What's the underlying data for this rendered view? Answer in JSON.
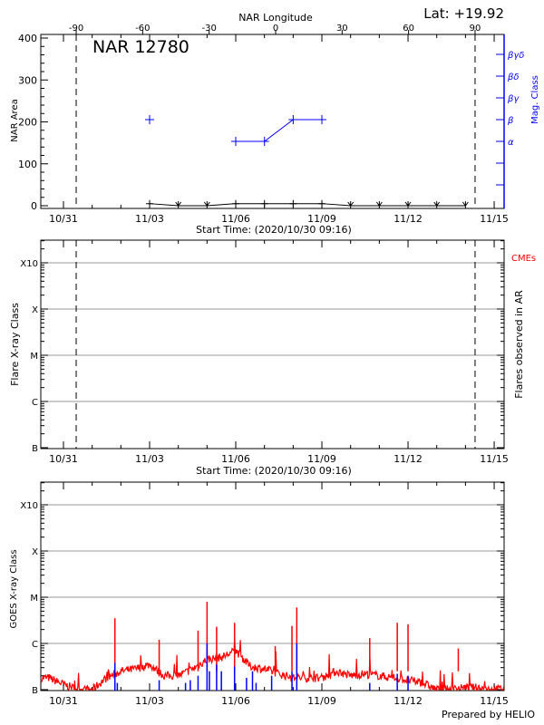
{
  "chart_data": [
    {
      "type": "line",
      "panel": "nar",
      "title": "NAR 12780",
      "latitude_label": "Lat: +19.92",
      "top_axis_label": "NAR Longitude",
      "top_ticks": [
        -90,
        -60,
        -30,
        0,
        30,
        60,
        90
      ],
      "xlabel": "Start Time: (2020/10/30 09:16)",
      "x_tick_labels": [
        "10/31",
        "11/03",
        "11/06",
        "11/09",
        "11/12",
        "11/15"
      ],
      "ylabel": "NAR Area",
      "ylim": [
        0,
        400
      ],
      "y_ticks": [
        0,
        100,
        200,
        300,
        400
      ],
      "y2label": "Mag. Class",
      "y2_ticks": [
        "α",
        "β",
        "βγ",
        "βδ",
        "βγδ"
      ],
      "limb_longitudes": [
        -90,
        90
      ],
      "series": [
        {
          "name": "NAR Area",
          "color": "#000000",
          "x": [
            "11/03",
            "11/04",
            "11/05",
            "11/06",
            "11/07",
            "11/08",
            "11/09",
            "11/10",
            "11/11",
            "11/12",
            "11/13",
            "11/14"
          ],
          "values": [
            5,
            0,
            0,
            5,
            5,
            5,
            5,
            0,
            0,
            0,
            0,
            0
          ]
        },
        {
          "name": "Mag. Class",
          "color": "#0000ff",
          "x": [
            "11/03",
            "11/06",
            "11/07",
            "11/08",
            "11/09"
          ],
          "values": [
            "β",
            "α",
            "α",
            "β",
            "β"
          ]
        }
      ]
    },
    {
      "type": "bar",
      "panel": "flares",
      "xlabel": "Start Time: (2020/10/30 09:16)",
      "x_tick_labels": [
        "10/31",
        "11/03",
        "11/06",
        "11/09",
        "11/12",
        "11/15"
      ],
      "ylabel": "Flare X-ray Class",
      "y_ticks": [
        "B",
        "C",
        "M",
        "X",
        "X10"
      ],
      "y2label": "Flares observed in AR",
      "legend": "CMEs",
      "cme_color": "#ff0000",
      "grid": true,
      "flares": []
    },
    {
      "type": "line",
      "panel": "goes",
      "ylabel": "GOES X-ray Class",
      "y_ticks": [
        "B",
        "C",
        "M",
        "X",
        "X10"
      ],
      "y_scale": "log",
      "x_tick_labels": [
        "10/31",
        "11/03",
        "11/06",
        "11/09",
        "11/12",
        "11/15"
      ],
      "grid": true,
      "curve_color": "#ff0000",
      "ar_flare_color": "#0000ff",
      "background_flux": {
        "time": [
          "10/30 12:00",
          "10/31 00:00",
          "10/31 12:00",
          "11/01 00:00",
          "11/01 12:00",
          "11/02 00:00",
          "11/02 12:00",
          "11/03 00:00",
          "11/03 12:00",
          "11/04 00:00",
          "11/04 12:00",
          "11/05 00:00",
          "11/05 12:00",
          "11/06 00:00",
          "11/06 12:00",
          "11/07 00:00",
          "11/07 12:00",
          "11/08 00:00",
          "11/08 12:00",
          "11/09 00:00",
          "11/09 12:00",
          "11/10 00:00",
          "11/10 12:00",
          "11/11 00:00",
          "11/11 12:00",
          "11/12 00:00",
          "11/12 12:00",
          "11/13 00:00",
          "11/13 12:00",
          "11/14 00:00",
          "11/14 12:00",
          "11/15 00:00",
          "11/15 12:00"
        ],
        "flux": [
          1.8e-07,
          1.3e-07,
          1e-07,
          1e-07,
          1.8e-07,
          2.5e-07,
          2.8e-07,
          3.5e-07,
          2e-07,
          2e-07,
          2.8e-07,
          4.5e-07,
          5e-07,
          7e-07,
          3.2e-07,
          2.8e-07,
          2.2e-07,
          1.8e-07,
          1.8e-07,
          1.8e-07,
          2.5e-07,
          2e-07,
          2.2e-07,
          2e-07,
          1.8e-07,
          1.6e-07,
          1.4e-07,
          1e-07,
          1e-07,
          1.1e-07,
          1.1e-07,
          1e-07,
          1.1e-07
        ]
      },
      "peaks": {
        "time": [
          "11/01 19:00",
          "11/03 08:00",
          "11/04 16:30",
          "11/05 00:00",
          "11/05 08:00",
          "11/05 23:00",
          "11/07 09:00",
          "11/07 23:00",
          "11/08 03:00",
          "11/10 16:00",
          "11/11 15:00",
          "11/12 00:00",
          "11/13 18:00"
        ],
        "flux": [
          3.5e-06,
          1.2e-06,
          1.9e-06,
          8e-06,
          2.3e-06,
          2.8e-06,
          8.7e-07,
          2.4e-06,
          6e-06,
          1.3e-06,
          2.8e-06,
          2.6e-06,
          7.8e-07
        ]
      },
      "ar_flares": {
        "time": [
          "11/01 19:00",
          "11/01 21:00",
          "11/03 08:00",
          "11/04 06:00",
          "11/04 10:00",
          "11/04 16:30",
          "11/05 00:00",
          "11/05 02:00",
          "11/05 08:00",
          "11/05 12:00",
          "11/05 23:00",
          "11/06 09:00",
          "11/06 14:00",
          "11/06 17:00",
          "11/07 06:00",
          "11/07 23:00",
          "11/08 03:00",
          "11/10 16:00",
          "11/11 15:00",
          "11/12 00:00"
        ],
        "flux": [
          3.8e-07,
          1.4e-07,
          1.6e-07,
          1.4e-07,
          1.6e-07,
          2e-07,
          1e-06,
          2.5e-07,
          3.5e-07,
          2.5e-07,
          3.2e-07,
          1.8e-07,
          2.5e-07,
          1.4e-07,
          2e-07,
          2.5e-07,
          1e-06,
          1.4e-07,
          2.2e-07,
          2e-07
        ]
      }
    }
  ],
  "footer": {
    "credit": "Prepared by HELIO"
  }
}
